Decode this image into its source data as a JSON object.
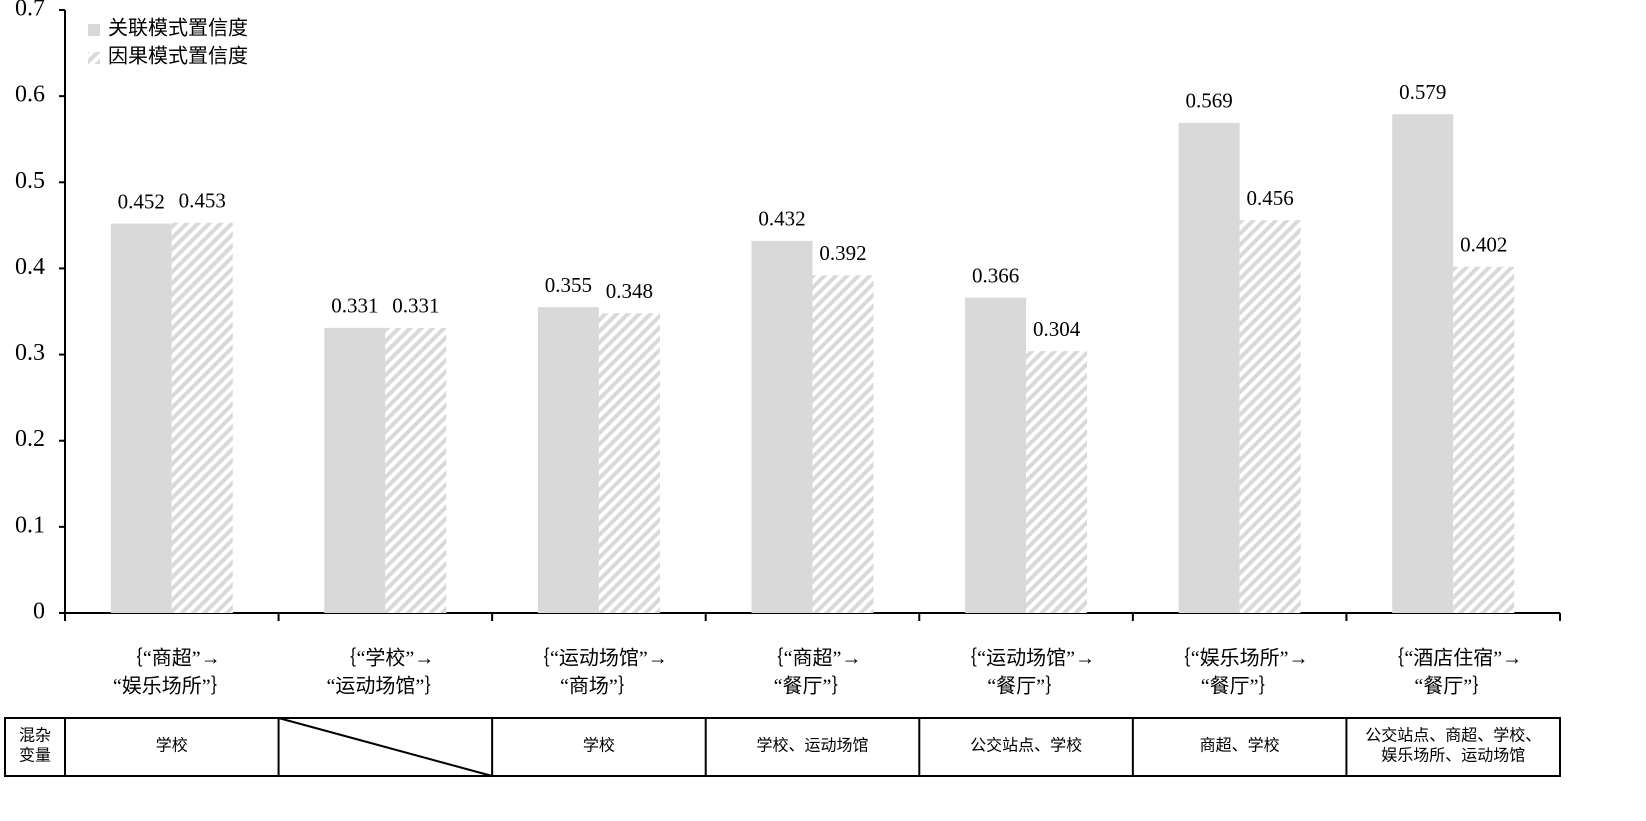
{
  "chart_data": {
    "type": "bar",
    "categories": [
      [
        "｛“商超”→",
        "“娱乐场所”｝"
      ],
      [
        "｛“学校”→",
        "“运动场馆”｝"
      ],
      [
        "｛“运动场馆”→",
        "“商场”｝"
      ],
      [
        "｛“商超”→",
        "“餐厅”｝"
      ],
      [
        "｛“运动场馆”→",
        "“餐厅”｝"
      ],
      [
        "｛“娱乐场所”→",
        "“餐厅”｝"
      ],
      [
        "｛“酒店住宿”→",
        "“餐厅”｝"
      ]
    ],
    "series": [
      {
        "name": "关联模式置信度",
        "color": "#d9d9d9",
        "values": [
          0.452,
          0.331,
          0.355,
          0.432,
          0.366,
          0.569,
          0.579
        ]
      },
      {
        "name": "因果模式置信度",
        "color": "#d9d9d9",
        "pattern": "hatch",
        "values": [
          0.453,
          0.331,
          0.348,
          0.392,
          0.304,
          0.456,
          0.402
        ]
      }
    ],
    "ylim": [
      0,
      0.7
    ],
    "yticks": [
      0,
      0.1,
      0.2,
      0.3,
      0.4,
      0.5,
      0.6,
      0.7
    ],
    "legend": "top-left"
  },
  "table": {
    "header": [
      "混杂",
      "变量"
    ],
    "cells": [
      [
        "学校"
      ],
      null,
      [
        "学校"
      ],
      [
        "学校、运动场馆"
      ],
      [
        "公交站点、学校"
      ],
      [
        "商超、学校"
      ],
      [
        "公交站点、商超、学校、",
        "娱乐场所、运动场馆"
      ]
    ]
  }
}
